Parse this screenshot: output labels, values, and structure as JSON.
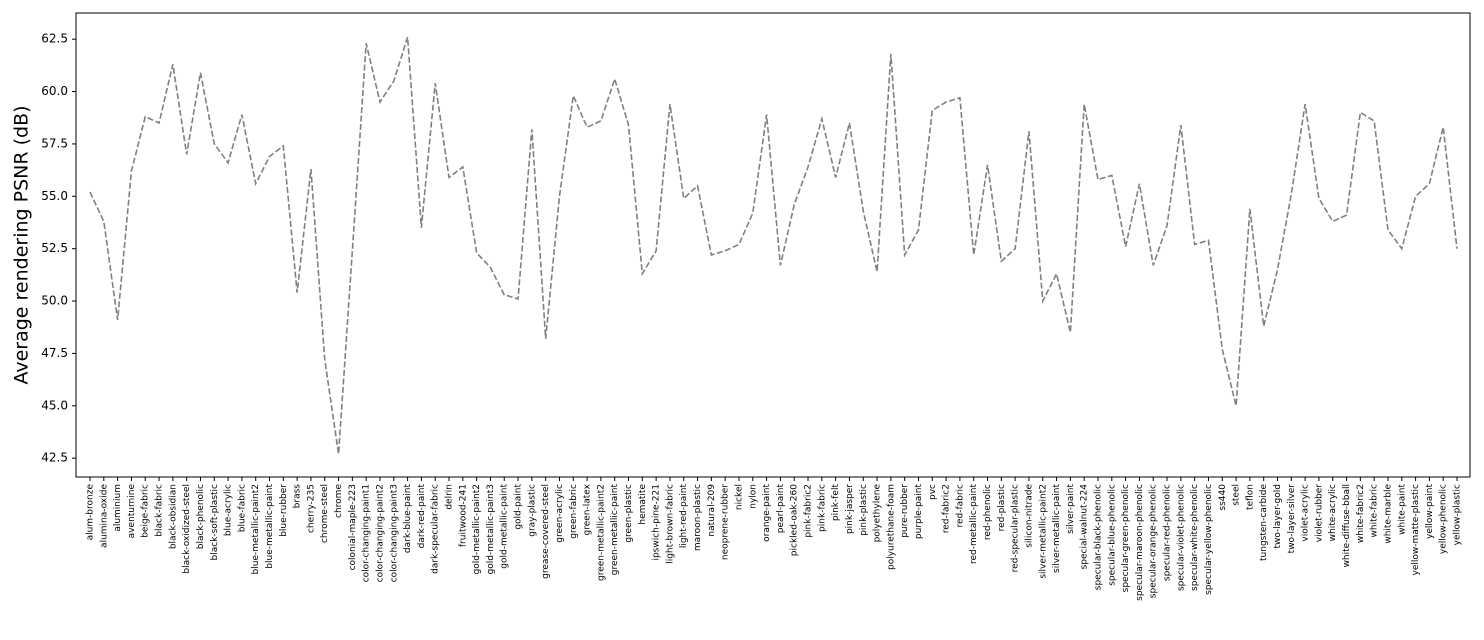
{
  "chart_data": {
    "type": "line",
    "y_label": "Average rendering PSNR (dB)",
    "categories": [
      "alum-bronze",
      "alumina-oxide",
      "aluminium",
      "aventurnine",
      "beige-fabric",
      "black-fabric",
      "black-obsidian",
      "black-oxidized-steel",
      "black-phenolic",
      "black-soft-plastic",
      "blue-acrylic",
      "blue-fabric",
      "blue-metallic-paint2",
      "blue-metallic-paint",
      "blue-rubber",
      "brass",
      "cherry-235",
      "chrome-steel",
      "chrome",
      "colonial-maple-223",
      "color-changing-paint1",
      "color-changing-paint2",
      "color-changing-paint3",
      "dark-blue-paint",
      "dark-red-paint",
      "dark-specular-fabric",
      "delrin",
      "fruitwood-241",
      "gold-metallic-paint2",
      "gold-metallic-paint3",
      "gold-metallic-paint",
      "gold-paint",
      "gray-plastic",
      "grease-covered-steel",
      "green-acrylic",
      "green-fabric",
      "green-latex",
      "green-metallic-paint2",
      "green-metallic-paint",
      "green-plastic",
      "hematite",
      "ipswich-pine-221",
      "light-brown-fabric",
      "light-red-paint",
      "maroon-plastic",
      "natural-209",
      "neoprene-rubber",
      "nickel",
      "nylon",
      "orange-paint",
      "pearl-paint",
      "pickled-oak-260",
      "pink-fabric2",
      "pink-fabric",
      "pink-felt",
      "pink-jasper",
      "pink-plastic",
      "polyethylene",
      "polyurethane-foam",
      "pure-rubber",
      "purple-paint",
      "pvc",
      "red-fabric2",
      "red-fabric",
      "red-metallic-paint",
      "red-phenolic",
      "red-plastic",
      "red-specular-plastic",
      "silicon-nitrade",
      "silver-metallic-paint2",
      "silver-metallic-paint",
      "silver-paint",
      "special-walnut-224",
      "specular-black-phenolic",
      "specular-blue-phenolic",
      "specular-green-phenolic",
      "specular-maroon-phenolic",
      "specular-orange-phenolic",
      "specular-red-phenolic",
      "specular-violet-phenolic",
      "specular-white-phenolic",
      "specular-yellow-phenolic",
      "ss440",
      "steel",
      "teflon",
      "tungsten-carbide",
      "two-layer-gold",
      "two-layer-silver",
      "violet-acrylic",
      "violet-rubber",
      "white-acrylic",
      "white-diffuse-bball",
      "white-fabric2",
      "white-fabric",
      "white-marble",
      "white-paint",
      "yellow-matte-plastic",
      "yellow-paint",
      "yellow-phenolic",
      "yellow-plastic"
    ],
    "values": [
      55.2,
      53.8,
      49.1,
      56.2,
      58.8,
      58.5,
      61.3,
      57.0,
      60.9,
      57.5,
      56.6,
      58.9,
      55.6,
      56.9,
      57.4,
      50.4,
      56.3,
      47.2,
      42.7,
      52.4,
      62.3,
      59.5,
      60.5,
      62.6,
      53.5,
      60.4,
      55.9,
      56.4,
      52.3,
      51.6,
      50.3,
      50.1,
      58.2,
      48.2,
      55.0,
      59.8,
      58.3,
      58.6,
      60.6,
      58.4,
      51.3,
      52.4,
      59.4,
      54.9,
      55.5,
      52.2,
      52.4,
      52.7,
      54.2,
      58.9,
      51.7,
      54.6,
      56.4,
      58.7,
      55.9,
      58.5,
      54.3,
      51.4,
      61.8,
      52.2,
      53.4,
      59.1,
      59.5,
      59.7,
      52.2,
      56.5,
      51.9,
      52.5,
      58.1,
      50.0,
      51.3,
      48.5,
      59.4,
      55.8,
      56.0,
      52.6,
      55.6,
      51.7,
      53.6,
      58.4,
      52.7,
      52.9,
      47.7,
      45.0,
      54.4,
      48.8,
      51.5,
      55.1,
      59.4,
      54.9,
      53.8,
      54.1,
      59.0,
      58.6,
      53.4,
      52.5,
      55.0,
      55.6,
      58.3,
      52.5
    ],
    "color": "#808080",
    "line_style": "dashed",
    "ylim": [
      41.6,
      63.75
    ],
    "yticks": [
      42.5,
      {
        "value": 45,
        "label": "45.0"
      },
      47.5,
      {
        "value": 50,
        "label": "50.0"
      },
      52.5,
      {
        "value": 55,
        "label": "55.0"
      },
      57.5,
      {
        "value": 60,
        "label": "60.0"
      },
      62.5
    ]
  }
}
